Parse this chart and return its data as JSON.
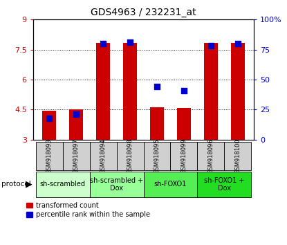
{
  "title": "GDS4963 / 232231_at",
  "samples": [
    "GSM918093",
    "GSM918097",
    "GSM918094",
    "GSM918098",
    "GSM918095",
    "GSM918099",
    "GSM918096",
    "GSM918100"
  ],
  "red_values": [
    4.45,
    4.5,
    7.82,
    7.82,
    4.62,
    4.58,
    7.82,
    7.82
  ],
  "blue_values": [
    18,
    21,
    80,
    81,
    44,
    41,
    78,
    80
  ],
  "ylim_left": [
    3,
    9
  ],
  "ylim_right": [
    0,
    100
  ],
  "yticks_left": [
    3,
    4.5,
    6,
    7.5,
    9
  ],
  "ytick_labels_left": [
    "3",
    "4.5",
    "6",
    "7.5",
    "9"
  ],
  "ytick_labels_right": [
    "0",
    "25",
    "50",
    "75",
    "100%"
  ],
  "bar_color": "#cc0000",
  "dot_color": "#0000cc",
  "bar_bottom": 3,
  "bar_width": 0.5,
  "dot_size": 30,
  "left_tick_color": "#cc0000",
  "right_tick_color": "#0000cc",
  "group_defs": [
    {
      "start": 0,
      "end": 2,
      "label": "sh-scrambled",
      "color": "#ccffcc"
    },
    {
      "start": 2,
      "end": 4,
      "label": "sh-scrambled +\nDox",
      "color": "#99ff99"
    },
    {
      "start": 4,
      "end": 6,
      "label": "sh-FOXO1",
      "color": "#55ee55"
    },
    {
      "start": 6,
      "end": 8,
      "label": "sh-FOXO1 +\nDox",
      "color": "#22dd22"
    }
  ],
  "sample_box_color": "#d0d0d0",
  "bg_color": "#ffffff"
}
